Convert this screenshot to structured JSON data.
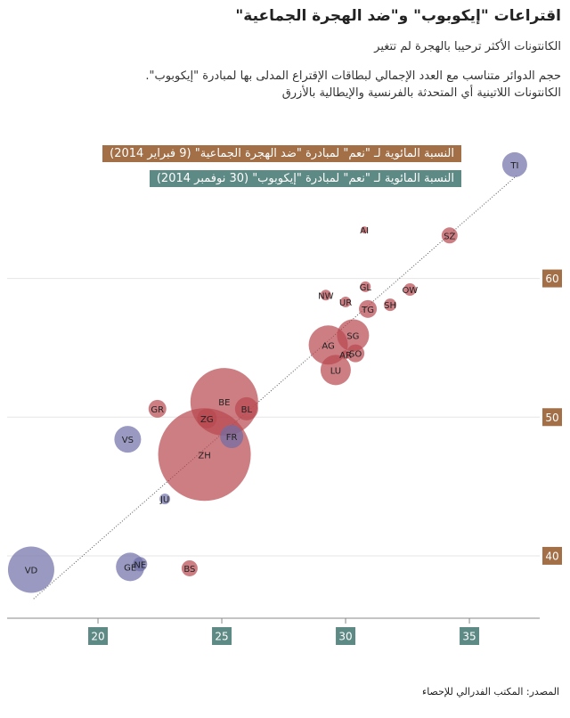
{
  "chart_data": {
    "type": "bubble",
    "title": "اقتراعات \"إيكوبوب\" و\"ضد الهجرة الجماعية\"",
    "subtitle": [
      "الكانتونات الأكثر ترحيبا بالهجرة لم تتغير",
      "حجم الدوائر متناسب مع العدد الإجمالي لبطاقات الإقتراع المدلى بها لمبادرة \"إيكوبوب\".",
      "الكانتونات اللاتينية أي المتحدثة بالفرنسية والإيطالية بالأزرق"
    ],
    "y_label": "النسبة المائوية لـ \"نعم\" لمبادرة \"ضد الهجرة الجماعية\" (9 فبراير 2014)",
    "x_label": "النسبة المائوية لـ \"نعم\" لمبادرة \"إيكوبوب\" (30 نوفمبر 2014)",
    "source": "المصدر: المكتب الفدرالي للإحصاء",
    "xlim": [
      16.33,
      37.84
    ],
    "xticks": [
      20,
      25,
      30,
      35
    ],
    "ylim": [
      35.5,
      69.8
    ],
    "yticks": [
      40,
      50,
      60
    ],
    "grid": true,
    "trendline": {
      "x": [
        17.4,
        36.9
      ],
      "y": [
        36.9,
        67.4
      ]
    },
    "points": [
      {
        "label": "ZH",
        "x": 24.3,
        "y": 47.3,
        "size": 52,
        "color": "#b8474f"
      },
      {
        "label": "BE",
        "x": 25.1,
        "y": 51.1,
        "size": 38,
        "color": "#b8474f"
      },
      {
        "label": "VD",
        "x": 17.3,
        "y": 39.0,
        "size": 26,
        "color": "#6e6ea6"
      },
      {
        "label": "AG",
        "x": 29.3,
        "y": 55.2,
        "size": 22,
        "color": "#b8474f"
      },
      {
        "label": "SG",
        "x": 30.3,
        "y": 55.9,
        "size": 18,
        "color": "#b8474f"
      },
      {
        "label": "LU",
        "x": 29.6,
        "y": 53.4,
        "size": 17,
        "color": "#b8474f"
      },
      {
        "label": "GE",
        "x": 21.3,
        "y": 39.2,
        "size": 16,
        "color": "#6e6ea6"
      },
      {
        "label": "VS",
        "x": 21.2,
        "y": 48.4,
        "size": 15,
        "color": "#6e6ea6"
      },
      {
        "label": "TI",
        "x": 36.83,
        "y": 68.2,
        "size": 14,
        "color": "#6e6ea6"
      },
      {
        "label": "BL",
        "x": 26.0,
        "y": 50.6,
        "size": 13,
        "color": "#b8474f"
      },
      {
        "label": "FR",
        "x": 25.4,
        "y": 48.6,
        "size": 13,
        "color": "#6e6ea6"
      },
      {
        "label": "ZG",
        "x": 24.4,
        "y": 49.9,
        "size": 11,
        "color": "#b8474f"
      },
      {
        "label": "GR",
        "x": 22.4,
        "y": 50.6,
        "size": 10,
        "color": "#b8474f"
      },
      {
        "label": "TG",
        "x": 30.9,
        "y": 57.8,
        "size": 10,
        "color": "#b8474f"
      },
      {
        "label": "SO",
        "x": 30.4,
        "y": 54.6,
        "size": 10,
        "color": "#b8474f"
      },
      {
        "label": "SZ",
        "x": 34.2,
        "y": 63.1,
        "size": 9,
        "color": "#b8474f"
      },
      {
        "label": "BS",
        "x": 23.7,
        "y": 39.1,
        "size": 9,
        "color": "#b8474f"
      },
      {
        "label": "NE",
        "x": 21.7,
        "y": 39.4,
        "size": 8,
        "color": "#6e6ea6"
      },
      {
        "label": "OW",
        "x": 32.6,
        "y": 59.2,
        "size": 7,
        "color": "#b8474f"
      },
      {
        "label": "SH",
        "x": 31.8,
        "y": 58.1,
        "size": 7,
        "color": "#b8474f"
      },
      {
        "label": "NW",
        "x": 29.2,
        "y": 58.8,
        "size": 6,
        "color": "#b8474f"
      },
      {
        "label": "GL",
        "x": 30.8,
        "y": 59.4,
        "size": 6,
        "color": "#b8474f"
      },
      {
        "label": "UR",
        "x": 30.0,
        "y": 58.3,
        "size": 6,
        "color": "#b8474f"
      },
      {
        "label": "JU",
        "x": 22.7,
        "y": 44.1,
        "size": 6,
        "color": "#6e6ea6"
      },
      {
        "label": "AR",
        "x": 30.0,
        "y": 54.5,
        "size": 5,
        "color": "#b8474f"
      },
      {
        "label": "AI",
        "x": 30.76,
        "y": 63.5,
        "size": 4,
        "color": "#b8474f"
      }
    ]
  }
}
